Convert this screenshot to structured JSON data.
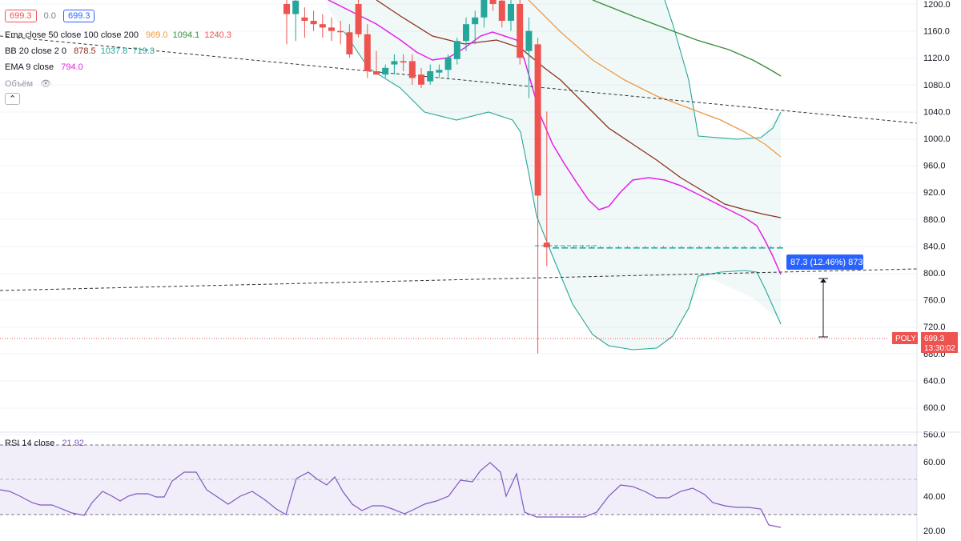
{
  "header": {
    "price_box_1": "699.3",
    "change_value": "0.0",
    "price_box_2": "699.3"
  },
  "legend": {
    "ema_triple": {
      "label": "Ema close 50 close 100 close 200",
      "v1": "969.0",
      "v2": "1094.1",
      "v3": "1240.3"
    },
    "bb": {
      "label": "BB 20 close 2 0",
      "v1": "878.5",
      "v2": "1037.8",
      "v3": "719.3"
    },
    "ema9": {
      "label": "EMA 9 close",
      "v1": "794.0"
    },
    "volume": {
      "label": "Объём"
    },
    "rsi": {
      "label": "RSI 14 close",
      "v1": "21.92"
    }
  },
  "price_axis": {
    "ticks": [
      "1200.0",
      "1160.0",
      "1120.0",
      "1080.0",
      "1040.0",
      "1000.0",
      "960.0",
      "920.0",
      "880.0",
      "840.0",
      "800.0",
      "760.0",
      "720.0",
      "680.0",
      "640.0",
      "600.0",
      "560.0"
    ]
  },
  "rsi_axis": {
    "ticks": [
      "60.00",
      "40.00",
      "20.00"
    ]
  },
  "current_price": {
    "symbol": "POLY",
    "price": "699.3",
    "countdown": "13:30:02"
  },
  "measure_label": "87.3 (12.46%) 873",
  "colors": {
    "up": "#26a69a",
    "down": "#ef5350",
    "ema9": "#e91ee8",
    "ema50": "#ef9a48",
    "ema100": "#8d2f1e",
    "ema200": "#388e3c",
    "bb": "#26a69a",
    "rsi": "#7e57c2",
    "measure_bg": "#2962ff"
  },
  "chart_data": {
    "type": "candlestick",
    "y_range": [
      555,
      1205
    ],
    "candles": [
      {
        "o": 1200,
        "h": 1225,
        "l": 1140,
        "c": 1185
      },
      {
        "o": 1185,
        "h": 1215,
        "l": 1145,
        "c": 1205
      },
      {
        "o": 1180,
        "h": 1195,
        "l": 1150,
        "c": 1175
      },
      {
        "o": 1175,
        "h": 1190,
        "l": 1160,
        "c": 1170
      },
      {
        "o": 1170,
        "h": 1185,
        "l": 1150,
        "c": 1165
      },
      {
        "o": 1165,
        "h": 1180,
        "l": 1145,
        "c": 1160
      },
      {
        "o": 1160,
        "h": 1175,
        "l": 1140,
        "c": 1158
      },
      {
        "o": 1158,
        "h": 1170,
        "l": 1120,
        "c": 1125
      },
      {
        "o": 1200,
        "h": 1215,
        "l": 1150,
        "c": 1155
      },
      {
        "o": 1155,
        "h": 1170,
        "l": 1090,
        "c": 1100
      },
      {
        "o": 1100,
        "h": 1130,
        "l": 1095,
        "c": 1095
      },
      {
        "o": 1095,
        "h": 1110,
        "l": 1090,
        "c": 1105
      },
      {
        "o": 1110,
        "h": 1125,
        "l": 1095,
        "c": 1115
      },
      {
        "o": 1115,
        "h": 1125,
        "l": 1100,
        "c": 1113
      },
      {
        "o": 1115,
        "h": 1125,
        "l": 1080,
        "c": 1090
      },
      {
        "o": 1095,
        "h": 1105,
        "l": 1075,
        "c": 1080
      },
      {
        "o": 1085,
        "h": 1110,
        "l": 1080,
        "c": 1100
      },
      {
        "o": 1098,
        "h": 1110,
        "l": 1090,
        "c": 1102
      },
      {
        "o": 1102,
        "h": 1125,
        "l": 1090,
        "c": 1120
      },
      {
        "o": 1118,
        "h": 1150,
        "l": 1110,
        "c": 1145
      },
      {
        "o": 1145,
        "h": 1180,
        "l": 1130,
        "c": 1170
      },
      {
        "o": 1170,
        "h": 1190,
        "l": 1140,
        "c": 1180
      },
      {
        "o": 1180,
        "h": 1220,
        "l": 1165,
        "c": 1210
      },
      {
        "o": 1210,
        "h": 1225,
        "l": 1190,
        "c": 1200
      },
      {
        "o": 1205,
        "h": 1220,
        "l": 1165,
        "c": 1175
      },
      {
        "o": 1175,
        "h": 1210,
        "l": 1160,
        "c": 1200
      },
      {
        "o": 1200,
        "h": 1215,
        "l": 1110,
        "c": 1120
      },
      {
        "o": 1130,
        "h": 1180,
        "l": 1060,
        "c": 1160
      },
      {
        "o": 1140,
        "h": 1150,
        "l": 680,
        "c": 915
      },
      {
        "o": 845,
        "h": 1040,
        "l": 810,
        "c": 838
      },
      {
        "o": 838,
        "h": 840,
        "l": 838,
        "c": 838
      },
      {
        "o": 838,
        "h": 840,
        "l": 838,
        "c": 838
      },
      {
        "o": 838,
        "h": 840,
        "l": 838,
        "c": 838
      },
      {
        "o": 838,
        "h": 840,
        "l": 838,
        "c": 838
      },
      {
        "o": 838,
        "h": 840,
        "l": 838,
        "c": 838
      },
      {
        "o": 838,
        "h": 840,
        "l": 838,
        "c": 838
      },
      {
        "o": 838,
        "h": 840,
        "l": 838,
        "c": 838
      },
      {
        "o": 838,
        "h": 840,
        "l": 838,
        "c": 838
      },
      {
        "o": 838,
        "h": 840,
        "l": 838,
        "c": 838
      },
      {
        "o": 838,
        "h": 840,
        "l": 838,
        "c": 838
      },
      {
        "o": 838,
        "h": 840,
        "l": 838,
        "c": 838
      },
      {
        "o": 838,
        "h": 840,
        "l": 838,
        "c": 838
      },
      {
        "o": 838,
        "h": 840,
        "l": 838,
        "c": 838
      },
      {
        "o": 838,
        "h": 840,
        "l": 838,
        "c": 838
      },
      {
        "o": 838,
        "h": 840,
        "l": 838,
        "c": 838
      },
      {
        "o": 838,
        "h": 840,
        "l": 838,
        "c": 838
      },
      {
        "o": 838,
        "h": 840,
        "l": 838,
        "c": 838
      },
      {
        "o": 838,
        "h": 840,
        "l": 838,
        "c": 838
      },
      {
        "o": 838,
        "h": 840,
        "l": 838,
        "c": 838
      },
      {
        "o": 838,
        "h": 840,
        "l": 838,
        "c": 838
      },
      {
        "o": 838,
        "h": 840,
        "l": 838,
        "c": 838
      },
      {
        "o": 838,
        "h": 840,
        "l": 838,
        "c": 838
      },
      {
        "o": 838,
        "h": 840,
        "l": 838,
        "c": 838
      },
      {
        "o": 838,
        "h": 840,
        "l": 838,
        "c": 838
      },
      {
        "o": 838,
        "h": 840,
        "l": 838,
        "c": 838
      },
      {
        "o": 838,
        "h": 840,
        "l": 838,
        "c": 838
      },
      {
        "o": 838,
        "h": 840,
        "l": 838,
        "c": 838
      },
      {
        "o": 838,
        "h": 840,
        "l": 838,
        "c": 838
      },
      {
        "o": 838,
        "h": 840,
        "l": 838,
        "c": 838
      },
      {
        "o": 838,
        "h": 840,
        "l": 838,
        "c": 838
      },
      {
        "o": 838,
        "h": 840,
        "l": 838,
        "c": 838
      },
      {
        "o": 838,
        "h": 840,
        "l": 838,
        "c": 838
      },
      {
        "o": 838,
        "h": 840,
        "l": 838,
        "c": 838
      },
      {
        "o": 838,
        "h": 840,
        "l": 838,
        "c": 838
      },
      {
        "o": 838,
        "h": 840,
        "l": 838,
        "c": 838
      },
      {
        "o": 838,
        "h": 840,
        "l": 838,
        "c": 838
      },
      {
        "o": 838,
        "h": 840,
        "l": 838,
        "c": 838
      },
      {
        "o": 838,
        "h": 840,
        "l": 838,
        "c": 838
      },
      {
        "o": 838,
        "h": 840,
        "l": 838,
        "c": 838
      },
      {
        "o": 838,
        "h": 840,
        "l": 838,
        "c": 838
      },
      {
        "o": 838,
        "h": 840,
        "l": 838,
        "c": 838
      },
      {
        "o": 838,
        "h": 840,
        "l": 838,
        "c": 838
      },
      {
        "o": 838,
        "h": 840,
        "l": 838,
        "c": 838
      },
      {
        "o": 838,
        "h": 840,
        "l": 838,
        "c": 838
      },
      {
        "o": 838,
        "h": 840,
        "l": 838,
        "c": 838
      },
      {
        "o": 838,
        "h": 840,
        "l": 838,
        "c": 838
      },
      {
        "o": 838,
        "h": 840,
        "l": 838,
        "c": 838
      },
      {
        "o": 838,
        "h": 840,
        "l": 838,
        "c": 838
      },
      {
        "o": 838,
        "h": 840,
        "l": 838,
        "c": 838
      },
      {
        "o": 838,
        "h": 840,
        "l": 838,
        "c": 838
      },
      {
        "o": 838,
        "h": 840,
        "l": 838,
        "c": 838
      },
      {
        "o": 838,
        "h": 840,
        "l": 838,
        "c": 838
      }
    ],
    "rsi_range": [
      20,
      75
    ],
    "rsi_levels": [
      70,
      50,
      30
    ]
  }
}
